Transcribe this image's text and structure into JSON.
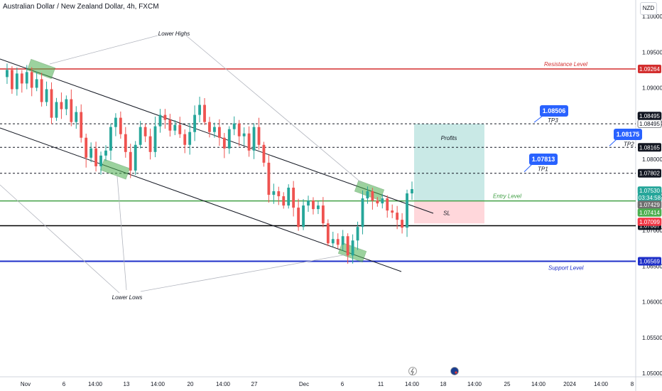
{
  "header": {
    "title": "Australian Dollar / New Zealand Dollar, 4h, FXCM",
    "currency": "NZD"
  },
  "chart_data": {
    "type": "candlestick",
    "title": "Australian Dollar / New Zealand Dollar, 4h, FXCM",
    "symbol": "AUDNZD",
    "timeframe": "4h",
    "source": "FXCM",
    "y_ticks": [
      "1.10000",
      "1.09500",
      "1.09000",
      "1.08500",
      "1.08000",
      "1.07500",
      "1.07000",
      "1.06500",
      "1.06000",
      "1.05500",
      "1.05000"
    ],
    "y_tick_values": [
      1.1,
      1.095,
      1.09,
      1.085,
      1.08,
      1.075,
      1.07,
      1.065,
      1.06,
      1.055,
      1.05
    ],
    "ylim": [
      1.0495,
      1.1023
    ],
    "x_ticks": [
      "Nov",
      "6",
      "14:00",
      "13",
      "14:00",
      "20",
      "14:00",
      "27",
      "Dec",
      "6",
      "11",
      "14:00",
      "18",
      "14:00",
      "25",
      "14:00",
      "2024",
      "14:00",
      "8"
    ],
    "price_path": [
      1.0915,
      1.0925,
      1.0898,
      1.092,
      1.0906,
      1.0922,
      1.09,
      1.0912,
      1.088,
      1.0898,
      1.0858,
      1.088,
      1.087,
      1.0884,
      1.0852,
      1.0866,
      1.083,
      1.0802,
      1.0815,
      1.079,
      1.0805,
      1.0812,
      1.0845,
      1.0858,
      1.0835,
      1.081,
      1.0784,
      1.082,
      1.0845,
      1.0832,
      1.081,
      1.0846,
      1.0862,
      1.0855,
      1.084,
      1.0848,
      1.0835,
      1.082,
      1.0838,
      1.0862,
      1.0876,
      1.0852,
      1.0838,
      1.0845,
      1.083,
      1.0815,
      1.0842,
      1.085,
      1.0832,
      1.0836,
      1.0812,
      1.0845,
      1.082,
      1.0795,
      1.075,
      1.0755,
      1.0748,
      1.0735,
      1.076,
      1.0732,
      1.0705,
      1.0735,
      1.0742,
      1.073,
      1.0735,
      1.071,
      1.0682,
      1.0688,
      1.068,
      1.0692,
      1.0665,
      1.0686,
      1.0705,
      1.0745,
      1.0755,
      1.0742,
      1.0738,
      1.0745,
      1.0728,
      1.0725,
      1.0715,
      1.0704,
      1.0752,
      1.0758
    ],
    "levels": [
      {
        "name": "Resistance Level",
        "value": 1.09264,
        "label": "1.09264",
        "color": "#d32f2f"
      },
      {
        "name": "TP3",
        "value": 1.08495,
        "label": "1.08495",
        "color": "#131722"
      },
      {
        "name": "TP2",
        "value": 1.08165,
        "label": "1.08165",
        "color": "#131722"
      },
      {
        "name": "TP1",
        "value": 1.07802,
        "label": "1.07802",
        "color": "#131722"
      },
      {
        "name": "Entry Level",
        "value": 1.07414,
        "label": "1.07414",
        "color": "#43a047"
      },
      {
        "name": "SL",
        "value": 1.07067,
        "label": "1.07067",
        "color": "#000000"
      },
      {
        "name": "Support Level",
        "value": 1.06569,
        "label": "1.06569",
        "color": "#1e2fc8"
      }
    ],
    "axis_badges": [
      {
        "label": "1.08495",
        "value": 1.08495,
        "bg": "#131722",
        "fg": "#ffffff"
      },
      {
        "label": "1.08495",
        "value": 1.08495,
        "bg": "#ffffff",
        "fg": "#131722"
      },
      {
        "label": "1.07530",
        "value": 1.0753,
        "bg": "#26a69a",
        "fg": "#ffffff"
      },
      {
        "label": "03:34:58",
        "value": 1.0753,
        "bg": "#26a69a",
        "fg": "#ffffff"
      },
      {
        "label": "1.07429",
        "value": 1.07429,
        "bg": "#707070",
        "fg": "#ffffff"
      },
      {
        "label": "1.07414",
        "value": 1.07414,
        "bg": "#4caf50",
        "fg": "#ffffff"
      },
      {
        "label": "1.07099",
        "value": 1.07099,
        "bg": "#f23645",
        "fg": "#ffffff"
      }
    ],
    "position": {
      "entry": 1.07414,
      "target": 1.08495,
      "stop": 1.07099,
      "profit_label": "Profits",
      "stop_label": "SL"
    },
    "callouts": [
      {
        "label": "1.08506",
        "target": "TP3"
      },
      {
        "label": "1.08175",
        "target": "TP2"
      },
      {
        "label": "1.07813",
        "target": "TP1"
      }
    ],
    "annotations": {
      "lower_highs": "Lower Highs",
      "lower_lows": "Lower Lows"
    },
    "colors": {
      "up": "#26a69a",
      "down": "#ef5350",
      "highlight": "#4caf50",
      "profit": "#b2dfdb",
      "loss": "#ffcdd2",
      "callout": "#2962ff"
    }
  }
}
